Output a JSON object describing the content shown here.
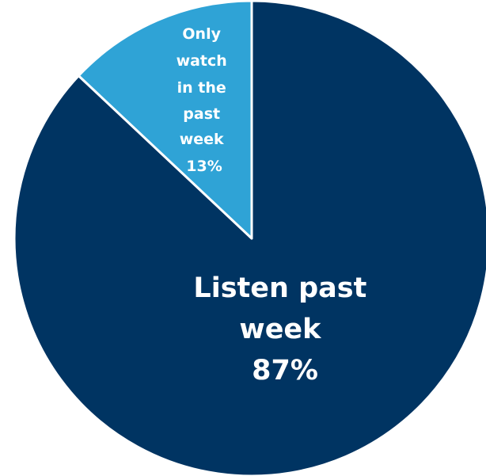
{
  "chart_data": {
    "type": "pie",
    "title": "",
    "start_angle_deg": 0,
    "direction": "clockwise",
    "slices": [
      {
        "label_lines": [
          "Listen past",
          "week",
          "87%"
        ],
        "value": 87,
        "color": "#003462"
      },
      {
        "label_lines": [
          "Only",
          "watch",
          "in the",
          "past",
          "week",
          "13%"
        ],
        "value": 13,
        "color": "#2fa3d6"
      }
    ],
    "separator_color": "#ffffff"
  }
}
